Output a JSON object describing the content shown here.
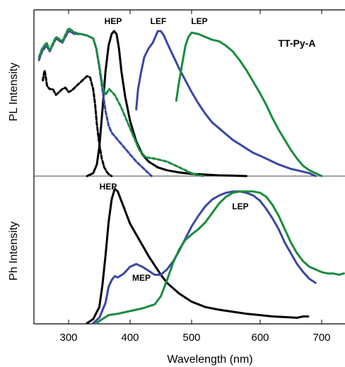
{
  "chart_data": [
    {
      "type": "line",
      "title": "TT-Py-A",
      "xlabel": "Wavelength (nm)",
      "ylabel": "PL Intensity",
      "xlim": [
        245,
        740
      ],
      "ylim": [
        0,
        1.08
      ],
      "y_ticks_labeled": false,
      "colors": {
        "black": "#000000",
        "blue": "#3a48a4",
        "green": "#1a8c3e"
      },
      "series": [
        {
          "label": "HEP",
          "color": "#000000",
          "dash": false,
          "x": [
            330,
            340,
            346,
            350,
            355,
            360,
            365,
            370,
            374,
            378,
            382,
            386,
            392,
            400,
            410,
            420,
            430,
            445,
            460,
            480,
            500,
            520,
            540,
            560,
            580
          ],
          "y": [
            0.0,
            0.02,
            0.08,
            0.2,
            0.45,
            0.72,
            0.9,
            0.98,
            1.0,
            0.98,
            0.88,
            0.72,
            0.55,
            0.38,
            0.24,
            0.15,
            0.1,
            0.06,
            0.04,
            0.025,
            0.015,
            0.01,
            0.005,
            0.003,
            0.0
          ]
        },
        {
          "label": "",
          "color": "#000000",
          "dash": true,
          "x": [
            259,
            262,
            266,
            270,
            275,
            280,
            285,
            290,
            295,
            300,
            305,
            310,
            315,
            320,
            325,
            330,
            335,
            340,
            343,
            346,
            350,
            354,
            358,
            362,
            366,
            370
          ],
          "y": [
            0.66,
            0.73,
            0.62,
            0.6,
            0.6,
            0.56,
            0.58,
            0.6,
            0.61,
            0.58,
            0.59,
            0.61,
            0.63,
            0.65,
            0.67,
            0.69,
            0.68,
            0.6,
            0.5,
            0.36,
            0.22,
            0.12,
            0.06,
            0.03,
            0.01,
            0.0
          ]
        },
        {
          "label": "",
          "color": "#3a48a4",
          "dash": true,
          "x": [
            253,
            258,
            265,
            270,
            280,
            290,
            300,
            310,
            320,
            330,
            340,
            345,
            350,
            355,
            360,
            365,
            370,
            380,
            390,
            400,
            410,
            420,
            430,
            435
          ],
          "y": [
            0.8,
            0.86,
            0.9,
            0.86,
            0.95,
            0.92,
            1.0,
            0.98,
            0.98,
            0.97,
            0.95,
            0.88,
            0.75,
            0.6,
            0.45,
            0.35,
            0.3,
            0.25,
            0.2,
            0.15,
            0.1,
            0.06,
            0.02,
            0.0
          ]
        },
        {
          "label": "",
          "color": "#1a8c3e",
          "dash": true,
          "x": [
            253,
            258,
            265,
            270,
            280,
            290,
            300,
            310,
            320,
            330,
            340,
            345,
            350,
            355,
            360,
            366,
            375,
            385,
            395,
            405,
            415,
            425,
            440,
            460,
            480,
            500,
            510,
            520
          ],
          "y": [
            0.82,
            0.88,
            0.92,
            0.87,
            0.96,
            0.93,
            1.02,
            0.99,
            0.98,
            0.97,
            0.95,
            0.88,
            0.76,
            0.63,
            0.56,
            0.6,
            0.56,
            0.48,
            0.38,
            0.28,
            0.18,
            0.13,
            0.12,
            0.1,
            0.06,
            0.02,
            0.005,
            0.0
          ]
        },
        {
          "label": "LEF",
          "color": "#3a48a4",
          "dash": false,
          "x": [
            410,
            413,
            418,
            423,
            430,
            437,
            445,
            450,
            455,
            460,
            470,
            480,
            490,
            500,
            510,
            520,
            530,
            540,
            550,
            560,
            570,
            580,
            590,
            600,
            610,
            620,
            630,
            640,
            650,
            660,
            670,
            680,
            690
          ],
          "y": [
            0.46,
            0.6,
            0.72,
            0.82,
            0.88,
            0.92,
            1.0,
            1.0,
            0.97,
            0.92,
            0.83,
            0.74,
            0.66,
            0.58,
            0.5,
            0.43,
            0.37,
            0.33,
            0.29,
            0.25,
            0.22,
            0.19,
            0.16,
            0.14,
            0.12,
            0.1,
            0.08,
            0.065,
            0.05,
            0.04,
            0.03,
            0.02,
            0.0
          ]
        },
        {
          "label": "LEP",
          "color": "#1a8c3e",
          "dash": false,
          "x": [
            475,
            480,
            485,
            490,
            495,
            500,
            510,
            520,
            530,
            540,
            550,
            560,
            570,
            580,
            590,
            600,
            610,
            620,
            630,
            640,
            650,
            660,
            670,
            680,
            690,
            700
          ],
          "y": [
            0.52,
            0.66,
            0.78,
            0.9,
            0.96,
            0.99,
            0.98,
            0.96,
            0.94,
            0.93,
            0.9,
            0.86,
            0.8,
            0.73,
            0.65,
            0.57,
            0.49,
            0.4,
            0.32,
            0.25,
            0.18,
            0.12,
            0.07,
            0.04,
            0.02,
            0.0
          ]
        }
      ]
    },
    {
      "type": "line",
      "title": "",
      "xlabel": "Wavelength (nm)",
      "ylabel": "Ph Intensity",
      "xlim": [
        245,
        740
      ],
      "ylim": [
        0,
        1.08
      ],
      "x_ticks": [
        300,
        400,
        500,
        600,
        700
      ],
      "y_ticks_labeled": false,
      "series": [
        {
          "label": "HEP",
          "color": "#000000",
          "dash": false,
          "x": [
            330,
            340,
            350,
            355,
            360,
            365,
            370,
            375,
            380,
            385,
            390,
            395,
            400,
            410,
            420,
            430,
            440,
            450,
            460,
            470,
            480,
            500,
            520,
            540,
            560,
            580,
            600,
            620,
            640,
            660,
            670,
            678
          ],
          "y": [
            0.0,
            0.03,
            0.12,
            0.28,
            0.5,
            0.75,
            0.92,
            1.0,
            0.98,
            0.92,
            0.86,
            0.8,
            0.74,
            0.66,
            0.58,
            0.5,
            0.43,
            0.36,
            0.3,
            0.26,
            0.22,
            0.16,
            0.12,
            0.1,
            0.085,
            0.07,
            0.06,
            0.05,
            0.045,
            0.04,
            0.05,
            0.05
          ]
        },
        {
          "label": "MEP",
          "color": "#3a48a4",
          "dash": false,
          "x": [
            340,
            350,
            360,
            365,
            370,
            375,
            380,
            390,
            400,
            410,
            420,
            430,
            440,
            450,
            460,
            470,
            480,
            490,
            500,
            510,
            520,
            530,
            540,
            550,
            560,
            570,
            580,
            590,
            600,
            610,
            620,
            630,
            640,
            650,
            660,
            670,
            680,
            690
          ],
          "y": [
            0.0,
            0.04,
            0.15,
            0.27,
            0.32,
            0.35,
            0.34,
            0.37,
            0.42,
            0.44,
            0.42,
            0.39,
            0.36,
            0.36,
            0.4,
            0.46,
            0.54,
            0.63,
            0.72,
            0.8,
            0.87,
            0.92,
            0.95,
            0.97,
            0.98,
            0.98,
            0.97,
            0.95,
            0.91,
            0.85,
            0.78,
            0.7,
            0.6,
            0.52,
            0.44,
            0.38,
            0.33,
            0.3
          ]
        },
        {
          "label": "LEP",
          "color": "#1a8c3e",
          "dash": false,
          "x": [
            345,
            355,
            365,
            380,
            400,
            420,
            440,
            450,
            460,
            470,
            480,
            490,
            500,
            510,
            520,
            530,
            540,
            550,
            560,
            570,
            580,
            590,
            600,
            610,
            620,
            630,
            640,
            650,
            660,
            670,
            680,
            690,
            700,
            710,
            720,
            730,
            738
          ],
          "y": [
            0.0,
            0.03,
            0.06,
            0.07,
            0.09,
            0.11,
            0.14,
            0.2,
            0.32,
            0.45,
            0.55,
            0.62,
            0.66,
            0.7,
            0.75,
            0.82,
            0.89,
            0.94,
            0.97,
            0.98,
            0.98,
            0.98,
            0.97,
            0.94,
            0.88,
            0.8,
            0.7,
            0.6,
            0.52,
            0.46,
            0.42,
            0.4,
            0.38,
            0.37,
            0.37,
            0.36,
            0.37
          ]
        }
      ]
    }
  ]
}
